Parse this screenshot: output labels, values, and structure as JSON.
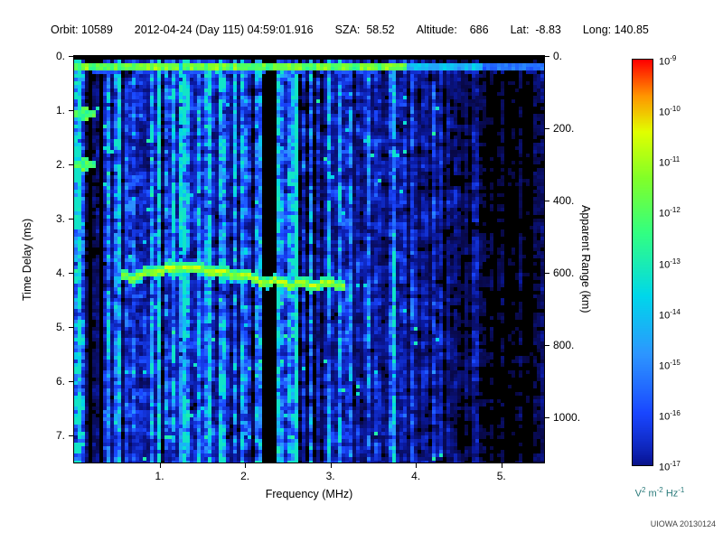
{
  "header": {
    "parts": [
      "Orbit: 10589",
      "2012-04-24 (Day 115) 04:59:01.916",
      "SZA:  58.52",
      "Altitude:    686",
      "Lat:  -8.83",
      "Long: 140.85"
    ]
  },
  "axes": {
    "x": {
      "label": "Frequency (MHz)",
      "range_mhz": [
        0,
        5.5
      ],
      "ticks": [
        {
          "label": "1.",
          "value": 1
        },
        {
          "label": "2.",
          "value": 2
        },
        {
          "label": "3.",
          "value": 3
        },
        {
          "label": "4.",
          "value": 4
        },
        {
          "label": "5.",
          "value": 5
        }
      ]
    },
    "y_left": {
      "label": "Time Delay (ms)",
      "range_ms": [
        0,
        7.5
      ],
      "ticks": [
        {
          "label": "0.",
          "value": 0
        },
        {
          "label": "1.",
          "value": 1
        },
        {
          "label": "2.",
          "value": 2
        },
        {
          "label": "3.",
          "value": 3
        },
        {
          "label": "4.",
          "value": 4
        },
        {
          "label": "5.",
          "value": 5
        },
        {
          "label": "6.",
          "value": 6
        },
        {
          "label": "7.",
          "value": 7
        }
      ]
    },
    "y_right": {
      "label": "Apparent Range (km)",
      "km_per_ms": 150,
      "ticks": [
        {
          "label": "0.",
          "value": 0
        },
        {
          "label": "200.",
          "value": 200
        },
        {
          "label": "400.",
          "value": 400
        },
        {
          "label": "600.",
          "value": 600
        },
        {
          "label": "800.",
          "value": 800
        },
        {
          "label": "1000.",
          "value": 1000
        }
      ]
    }
  },
  "colorbar": {
    "scale": "log10",
    "tick_exponents": [
      -9,
      -10,
      -11,
      -12,
      -13,
      -14,
      -15,
      -16,
      -17
    ],
    "unit_parts": [
      [
        "V",
        "2"
      ],
      [
        "m",
        "-2"
      ],
      [
        "Hz",
        "-1"
      ]
    ]
  },
  "credit": "UIOWA 20130124",
  "chart_data": {
    "type": "heatmap",
    "title": "Radar sounder ionogram (spectrogram of received spectral density)",
    "xlabel": "Frequency (MHz)",
    "ylabel_left": "Time Delay (ms)",
    "ylabel_right": "Apparent Range (km)",
    "x_range_mhz": [
      0,
      5.5
    ],
    "y_range_ms": [
      0,
      7.5
    ],
    "right_axis_range_km": [
      0,
      1125
    ],
    "color_scale": {
      "quantity": "spectral density",
      "unit": "V^2 m^-2 Hz^-1",
      "max": "1e-9",
      "min": "1e-17",
      "palette": "rainbow (red=high, dark blue=low, black=below scale)"
    },
    "features": {
      "local_noise_band": {
        "delay_ms": 0.25,
        "freq_span_mhz": [
          0.0,
          5.5
        ]
      },
      "ionospheric_echo_trace": {
        "points_mhz_ms": [
          [
            0.55,
            4.05
          ],
          [
            0.7,
            4.0
          ],
          [
            0.9,
            3.95
          ],
          [
            1.1,
            3.88
          ],
          [
            1.3,
            3.86
          ],
          [
            1.5,
            3.9
          ],
          [
            1.7,
            3.95
          ],
          [
            1.9,
            4.0
          ],
          [
            2.1,
            4.08
          ],
          [
            2.3,
            4.12
          ],
          [
            2.5,
            4.15
          ],
          [
            2.8,
            4.15
          ],
          [
            3.0,
            4.16
          ],
          [
            3.15,
            4.18
          ]
        ]
      },
      "interference_line_mhz": 1.22,
      "attenuation_bands_mhz": [
        [
          2.18,
          2.36
        ],
        [
          0.28,
          0.34
        ],
        [
          0.16,
          0.2
        ]
      ],
      "noise_blobs": [
        {
          "freq_mhz": 0.1,
          "delay_ms": 1.0
        },
        {
          "freq_mhz": 0.1,
          "delay_ms": 1.95
        }
      ],
      "background": "diffuse blue noise, brightest below 2.3 MHz, fading to sparse dark-blue blobs on black above 4.5 MHz"
    }
  }
}
